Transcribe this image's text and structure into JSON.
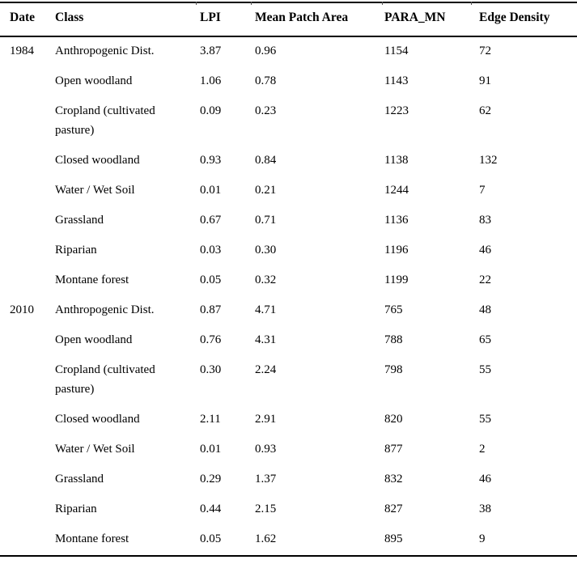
{
  "table": {
    "columns": [
      "Date",
      "Class",
      "LPI",
      "Mean Patch Area",
      "PARA_MN",
      "Edge Density"
    ],
    "rows": [
      {
        "date": "1984",
        "class": "Anthropogenic Dist.",
        "lpi": "3.87",
        "mpa": "0.96",
        "para": "1154",
        "edge": "72"
      },
      {
        "date": "",
        "class": "Open woodland",
        "lpi": "1.06",
        "mpa": "0.78",
        "para": "1143",
        "edge": "91"
      },
      {
        "date": "",
        "class": "Cropland (cultivated pasture)",
        "lpi": "0.09",
        "mpa": "0.23",
        "para": "1223",
        "edge": "62"
      },
      {
        "date": "",
        "class": "Closed woodland",
        "lpi": "0.93",
        "mpa": "0.84",
        "para": "1138",
        "edge": "132"
      },
      {
        "date": "",
        "class": "Water / Wet Soil",
        "lpi": "0.01",
        "mpa": "0.21",
        "para": "1244",
        "edge": "7"
      },
      {
        "date": "",
        "class": "Grassland",
        "lpi": "0.67",
        "mpa": "0.71",
        "para": "1136",
        "edge": "83"
      },
      {
        "date": "",
        "class": "Riparian",
        "lpi": "0.03",
        "mpa": "0.30",
        "para": "1196",
        "edge": "46"
      },
      {
        "date": "",
        "class": "Montane forest",
        "lpi": "0.05",
        "mpa": "0.32",
        "para": "1199",
        "edge": "22"
      },
      {
        "date": "2010",
        "class": "Anthropogenic Dist.",
        "lpi": "0.87",
        "mpa": "4.71",
        "para": "765",
        "edge": "48"
      },
      {
        "date": "",
        "class": "Open woodland",
        "lpi": "0.76",
        "mpa": "4.31",
        "para": "788",
        "edge": "65"
      },
      {
        "date": "",
        "class": "Cropland (cultivated pasture)",
        "lpi": "0.30",
        "mpa": "2.24",
        "para": "798",
        "edge": "55"
      },
      {
        "date": "",
        "class": "Closed woodland",
        "lpi": "2.11",
        "mpa": "2.91",
        "para": "820",
        "edge": "55"
      },
      {
        "date": "",
        "class": "Water / Wet Soil",
        "lpi": "0.01",
        "mpa": "0.93",
        "para": "877",
        "edge": "2"
      },
      {
        "date": "",
        "class": "Grassland",
        "lpi": "0.29",
        "mpa": "1.37",
        "para": "832",
        "edge": "46"
      },
      {
        "date": "",
        "class": "Riparian",
        "lpi": "0.44",
        "mpa": "2.15",
        "para": "827",
        "edge": "38"
      },
      {
        "date": "",
        "class": "Montane forest",
        "lpi": "0.05",
        "mpa": "1.62",
        "para": "895",
        "edge": "9"
      }
    ]
  }
}
